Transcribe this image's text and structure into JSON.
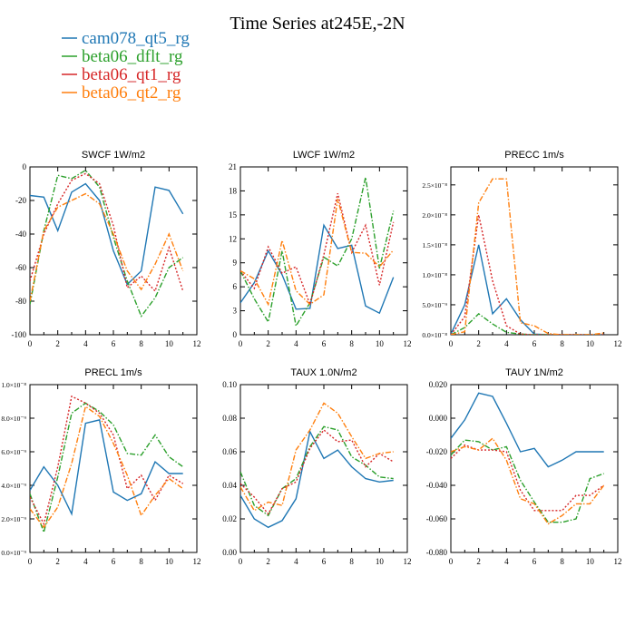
{
  "figure": {
    "title": "Time Series at245E,-2N",
    "legend": [
      {
        "name": "cam078_qt5_rg",
        "color": "#1f77b4",
        "dash": "solid"
      },
      {
        "name": "beta06_dflt_rg",
        "color": "#2ca02c",
        "dash": "dashdot"
      },
      {
        "name": "beta06_qt1_rg",
        "color": "#d62728",
        "dash": "dotted"
      },
      {
        "name": "beta06_qt2_rg",
        "color": "#ff7f0e",
        "dash": "dashdot"
      }
    ]
  },
  "chart_data": [
    {
      "type": "line",
      "title": "SWCF   1W/m2",
      "x": [
        0,
        1,
        2,
        3,
        4,
        5,
        6,
        7,
        8,
        9,
        10,
        11
      ],
      "xlim": [
        0,
        12
      ],
      "xticks": [
        "0",
        "2",
        "4",
        "6",
        "8",
        "10",
        "12"
      ],
      "ylim": [
        -100,
        0
      ],
      "yticks": [
        "-100",
        "-80",
        "-60",
        "-40",
        "-20",
        "0"
      ],
      "ytick_values": [
        -100,
        -80,
        -60,
        -40,
        -20,
        0
      ],
      "series": [
        {
          "name": "cam078_qt5_rg",
          "values": [
            -17,
            -18,
            -38,
            -15,
            -10,
            -20,
            -50,
            -70,
            -62,
            -12,
            -14,
            -28
          ]
        },
        {
          "name": "beta06_dflt_rg",
          "values": [
            -82,
            -38,
            -5,
            -7,
            -2,
            -12,
            -42,
            -68,
            -89,
            -78,
            -60,
            -54
          ]
        },
        {
          "name": "beta06_qt1_rg",
          "values": [
            -68,
            -40,
            -22,
            -8,
            -4,
            -10,
            -35,
            -72,
            -65,
            -74,
            -48,
            -74
          ]
        },
        {
          "name": "beta06_qt2_rg",
          "values": [
            -80,
            -38,
            -24,
            -20,
            -16,
            -22,
            -40,
            -62,
            -73,
            -58,
            -40,
            -62
          ]
        }
      ]
    },
    {
      "type": "line",
      "title": "LWCF   1W/m2",
      "x": [
        0,
        1,
        2,
        3,
        4,
        5,
        6,
        7,
        8,
        9,
        10,
        11
      ],
      "xlim": [
        0,
        12
      ],
      "xticks": [
        "0",
        "2",
        "4",
        "6",
        "8",
        "10",
        "12"
      ],
      "ylim": [
        0,
        21
      ],
      "yticks": [
        "0",
        "3",
        "6",
        "9",
        "12",
        "15",
        "18",
        "21"
      ],
      "ytick_values": [
        0,
        3,
        6,
        9,
        12,
        15,
        18,
        21
      ],
      "series": [
        {
          "name": "cam078_qt5_rg",
          "values": [
            4,
            6.5,
            10.5,
            7.5,
            3.2,
            3.3,
            13.7,
            10.8,
            11.2,
            3.6,
            2.7,
            7.2
          ]
        },
        {
          "name": "beta06_dflt_rg",
          "values": [
            8,
            4.5,
            1.6,
            10.5,
            1.1,
            4,
            9.7,
            8.6,
            12,
            19.7,
            8.3,
            15.5
          ]
        },
        {
          "name": "beta06_qt1_rg",
          "values": [
            8,
            5.8,
            11,
            7.7,
            8.5,
            3.8,
            10,
            17.7,
            10.3,
            13.7,
            6.2,
            14.1
          ]
        },
        {
          "name": "beta06_qt2_rg",
          "values": [
            8,
            7,
            3.8,
            11.8,
            5.5,
            3.8,
            5,
            17,
            10.3,
            10.2,
            8.5,
            10.6
          ]
        }
      ]
    },
    {
      "type": "line",
      "title": "PRECC   1m/s",
      "x": [
        0,
        1,
        2,
        3,
        4,
        5,
        6,
        7,
        8,
        9,
        10,
        11
      ],
      "xlim": [
        0,
        12
      ],
      "xticks": [
        "0",
        "2",
        "4",
        "6",
        "8",
        "10",
        "12"
      ],
      "ylim": [
        0,
        2.8e-08
      ],
      "yticks": [
        "0.0×10⁻⁸",
        "5.0×10⁻⁹",
        "1.0×10⁻⁸",
        "1.5×10⁻⁸",
        "2.0×10⁻⁸",
        "2.5×10⁻⁸"
      ],
      "ytick_values": [
        0,
        5e-09,
        1e-08,
        1.5e-08,
        2e-08,
        2.5e-08
      ],
      "series": [
        {
          "name": "cam078_qt5_rg",
          "values": [
            1e-10,
            5e-09,
            1.5e-08,
            3.5e-09,
            6e-09,
            2.5e-09,
            1e-10,
            0,
            0,
            0,
            0,
            0
          ]
        },
        {
          "name": "beta06_dflt_rg",
          "values": [
            0,
            1.2e-09,
            3.5e-09,
            1.8e-09,
            4e-10,
            1e-10,
            0,
            0,
            0,
            0,
            0,
            0
          ]
        },
        {
          "name": "beta06_qt1_rg",
          "values": [
            0,
            3e-09,
            2e-08,
            9e-09,
            1.5e-09,
            1e-10,
            0,
            0,
            0,
            0,
            0,
            0
          ]
        },
        {
          "name": "beta06_qt2_rg",
          "values": [
            0,
            5e-10,
            2.2e-08,
            2.6e-08,
            2.6e-08,
            2e-09,
            1.5e-09,
            2e-10,
            0,
            0,
            0,
            3e-10
          ]
        }
      ]
    },
    {
      "type": "line",
      "title": "PRECL   1m/s",
      "x": [
        0,
        1,
        2,
        3,
        4,
        5,
        6,
        7,
        8,
        9,
        10,
        11
      ],
      "xlim": [
        0,
        12
      ],
      "xticks": [
        "0",
        "2",
        "4",
        "6",
        "8",
        "10",
        "12"
      ],
      "ylim": [
        0,
        1e-08
      ],
      "yticks": [
        "0.0×10⁻⁹",
        "2.0×10⁻⁹",
        "4.0×10⁻⁹",
        "6.0×10⁻⁹",
        "8.0×10⁻⁹",
        "1.0×10⁻⁸"
      ],
      "ytick_values": [
        0,
        2e-09,
        4e-09,
        6e-09,
        8e-09,
        1e-08
      ],
      "series": [
        {
          "name": "cam078_qt5_rg",
          "values": [
            3.7e-09,
            5.1e-09,
            4e-09,
            2.3e-09,
            7.7e-09,
            7.9e-09,
            3.6e-09,
            3.1e-09,
            3.5e-09,
            5.4e-09,
            4.7e-09,
            4.7e-09
          ]
        },
        {
          "name": "beta06_dflt_rg",
          "values": [
            3.5e-09,
            1.2e-09,
            4.5e-09,
            8.3e-09,
            8.9e-09,
            8.4e-09,
            7.6e-09,
            5.9e-09,
            5.8e-09,
            7e-09,
            5.7e-09,
            5.1e-09
          ]
        },
        {
          "name": "beta06_qt1_rg",
          "values": [
            3.3e-09,
            1.7e-09,
            5.1e-09,
            9.3e-09,
            8.9e-09,
            8.3e-09,
            7e-09,
            3.8e-09,
            4.6e-09,
            3.1e-09,
            4.6e-09,
            4.1e-09
          ]
        },
        {
          "name": "beta06_qt2_rg",
          "values": [
            2.6e-09,
            1.5e-09,
            2.7e-09,
            5.3e-09,
            8.7e-09,
            8.1e-09,
            6.5e-09,
            4.6e-09,
            2.2e-09,
            3.4e-09,
            4.4e-09,
            3.8e-09
          ]
        }
      ]
    },
    {
      "type": "line",
      "title": "TAUX   1.0N/m2",
      "x": [
        0,
        1,
        2,
        3,
        4,
        5,
        6,
        7,
        8,
        9,
        10,
        11
      ],
      "xlim": [
        0,
        12
      ],
      "xticks": [
        "0",
        "2",
        "4",
        "6",
        "8",
        "10",
        "12"
      ],
      "ylim": [
        0,
        0.1
      ],
      "yticks": [
        "0.00",
        "0.02",
        "0.04",
        "0.06",
        "0.08",
        "0.10"
      ],
      "ytick_values": [
        0,
        0.02,
        0.04,
        0.06,
        0.08,
        0.1
      ],
      "series": [
        {
          "name": "cam078_qt5_rg",
          "values": [
            0.034,
            0.02,
            0.015,
            0.019,
            0.032,
            0.072,
            0.056,
            0.061,
            0.051,
            0.044,
            0.042,
            0.043
          ]
        },
        {
          "name": "beta06_dflt_rg",
          "values": [
            0.048,
            0.028,
            0.022,
            0.038,
            0.044,
            0.063,
            0.075,
            0.073,
            0.057,
            0.052,
            0.045,
            0.044
          ]
        },
        {
          "name": "beta06_qt1_rg",
          "values": [
            0.041,
            0.033,
            0.023,
            0.038,
            0.042,
            0.062,
            0.073,
            0.066,
            0.067,
            0.051,
            0.059,
            0.054
          ]
        },
        {
          "name": "beta06_qt2_rg",
          "values": [
            0.039,
            0.025,
            0.03,
            0.028,
            0.061,
            0.073,
            0.089,
            0.083,
            0.069,
            0.056,
            0.059,
            0.06
          ]
        }
      ]
    },
    {
      "type": "line",
      "title": "TAUY   1N/m2",
      "x": [
        0,
        1,
        2,
        3,
        4,
        5,
        6,
        7,
        8,
        9,
        10,
        11
      ],
      "xlim": [
        0,
        12
      ],
      "xticks": [
        "0",
        "2",
        "4",
        "6",
        "8",
        "10",
        "12"
      ],
      "ylim": [
        -0.08,
        0.02
      ],
      "yticks": [
        "-0.080",
        "-0.060",
        "-0.040",
        "-0.020",
        "0.000",
        "0.020"
      ],
      "ytick_values": [
        -0.08,
        -0.06,
        -0.04,
        -0.02,
        0,
        0.02
      ],
      "series": [
        {
          "name": "cam078_qt5_rg",
          "values": [
            -0.012,
            -0.001,
            0.015,
            0.013,
            -0.003,
            -0.02,
            -0.018,
            -0.029,
            -0.025,
            -0.02,
            -0.02,
            -0.02
          ]
        },
        {
          "name": "beta06_dflt_rg",
          "values": [
            -0.022,
            -0.013,
            -0.014,
            -0.019,
            -0.017,
            -0.037,
            -0.05,
            -0.062,
            -0.062,
            -0.06,
            -0.036,
            -0.033
          ]
        },
        {
          "name": "beta06_qt1_rg",
          "values": [
            -0.024,
            -0.016,
            -0.019,
            -0.019,
            -0.02,
            -0.043,
            -0.055,
            -0.055,
            -0.055,
            -0.046,
            -0.046,
            -0.04
          ]
        },
        {
          "name": "beta06_qt2_rg",
          "values": [
            -0.02,
            -0.017,
            -0.019,
            -0.012,
            -0.025,
            -0.048,
            -0.051,
            -0.063,
            -0.058,
            -0.051,
            -0.051,
            -0.04
          ]
        }
      ]
    }
  ]
}
